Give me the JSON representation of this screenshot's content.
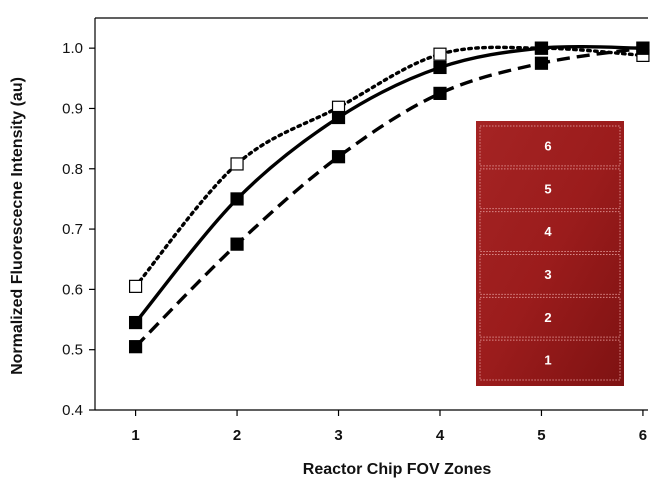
{
  "chart_data": {
    "type": "line",
    "title": "",
    "xlabel": "Reactor Chip FOV Zones",
    "ylabel": "Normalized Fluorescecne Intensity (au)",
    "x": [
      1,
      2,
      3,
      4,
      5,
      6
    ],
    "xlim": [
      0.6,
      6.05
    ],
    "ylim": [
      0.4,
      1.05
    ],
    "x_ticks": [
      "1",
      "2",
      "3",
      "4",
      "5",
      "6"
    ],
    "y_ticks": [
      "0.4",
      "0.5",
      "0.6",
      "0.7",
      "0.8",
      "0.9",
      "1.0"
    ],
    "grid": false,
    "series": [
      {
        "style": "dotted",
        "marker": "open-square",
        "values": [
          0.605,
          0.808,
          0.902,
          0.99,
          1.0,
          0.988
        ]
      },
      {
        "style": "solid",
        "marker": "filled-square",
        "values": [
          0.545,
          0.75,
          0.885,
          0.968,
          1.0,
          1.0
        ]
      },
      {
        "style": "dashed",
        "marker": "filled-square",
        "values": [
          0.505,
          0.675,
          0.82,
          0.925,
          0.975,
          1.0
        ]
      }
    ],
    "inset": {
      "zones": [
        "6",
        "5",
        "4",
        "3",
        "2",
        "1"
      ],
      "color": "#9b1c1c"
    }
  }
}
